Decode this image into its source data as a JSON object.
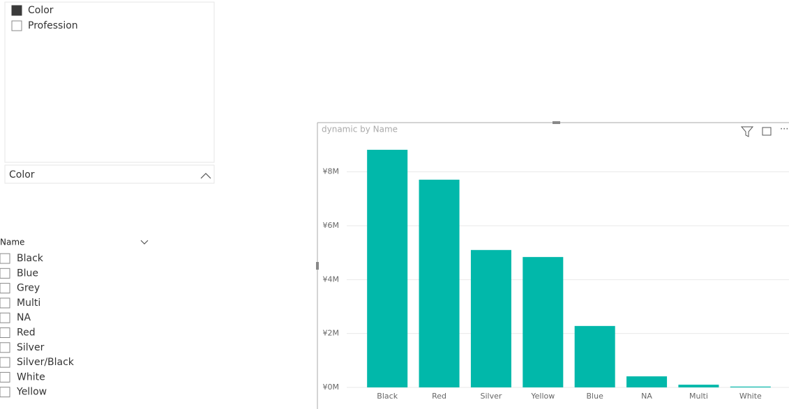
{
  "field_slicer": {
    "items": [
      {
        "label": "Color",
        "checked": true
      },
      {
        "label": "Profession",
        "checked": false
      }
    ],
    "header": "Color"
  },
  "name_slicer": {
    "title": "Name",
    "items": [
      "Black",
      "Blue",
      "Grey",
      "Multi",
      "NA",
      "Red",
      "Silver",
      "Silver/Black",
      "White",
      "Yellow"
    ]
  },
  "chart_data": {
    "type": "bar",
    "title": "dynamic by Name",
    "categories": [
      "Black",
      "Red",
      "Silver",
      "Yellow",
      "Blue",
      "NA",
      "Multi",
      "White"
    ],
    "values": [
      8820000,
      7710000,
      5100000,
      4840000,
      2280000,
      410000,
      100000,
      30000
    ],
    "color": "#01b8aa",
    "ylim": [
      0,
      9000000
    ],
    "yticks": [
      {
        "value": 0,
        "label": "¥0M"
      },
      {
        "value": 2000000,
        "label": "¥2M"
      },
      {
        "value": 4000000,
        "label": "¥4M"
      },
      {
        "value": 6000000,
        "label": "¥6M"
      },
      {
        "value": 8000000,
        "label": "¥8M"
      }
    ],
    "grid": true
  }
}
